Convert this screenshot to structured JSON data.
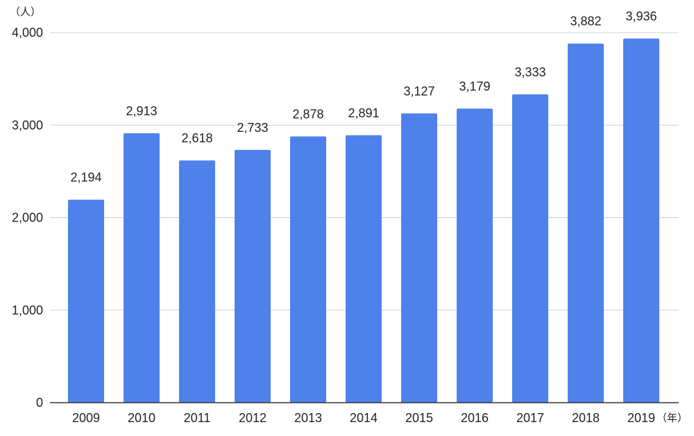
{
  "colors": {
    "bar": "#4f81ea",
    "grid": "#d0d0d0",
    "axis": "#333333",
    "text": "#222222"
  },
  "chart_data": {
    "type": "bar",
    "title": "",
    "xlabel": "",
    "ylabel": "",
    "y_unit": "（人）",
    "x_unit": "（年）",
    "categories": [
      "2009",
      "2010",
      "2011",
      "2012",
      "2013",
      "2014",
      "2015",
      "2016",
      "2017",
      "2018",
      "2019"
    ],
    "values": [
      2194,
      2913,
      2618,
      2733,
      2878,
      2891,
      3127,
      3179,
      3333,
      3882,
      3936
    ],
    "value_labels": [
      "2,194",
      "2,913",
      "2,618",
      "2,733",
      "2,878",
      "2,891",
      "3,127",
      "3,179",
      "3,333",
      "3,882",
      "3,936"
    ],
    "ylim": [
      0,
      4000
    ],
    "yticks": [
      0,
      1000,
      2000,
      3000,
      4000
    ],
    "ytick_labels": [
      "0",
      "1,000",
      "2,000",
      "3,000",
      "4,000"
    ],
    "grid": true,
    "legend": "none"
  }
}
